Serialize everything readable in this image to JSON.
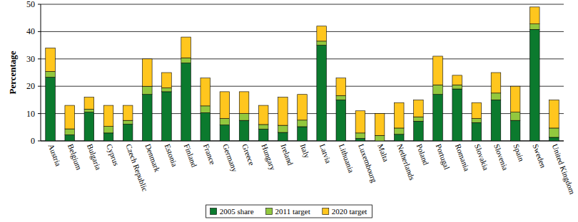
{
  "chart_data": {
    "type": "bar",
    "stacked": true,
    "y_label": "Percentage",
    "categories": [
      "Austria",
      "Belgium",
      "Bulgaria",
      "Cyprus",
      "Czech Republic",
      "Denmark",
      "Estonia",
      "Finland",
      "France",
      "Germany",
      "Greece",
      "Hungary",
      "Ireland",
      "Italy",
      "Latvia",
      "Lithuania",
      "Luxembourg",
      "Malta",
      "Netherlands",
      "Poland",
      "Portugal",
      "Romania",
      "Slovakia",
      "Slovenia",
      "Spain",
      "Sweden",
      "United Kingdom"
    ],
    "series": [
      {
        "name": "2005 share",
        "color": "#0b7a2e",
        "values": [
          23.3,
          2.2,
          10.5,
          2.9,
          6.1,
          17,
          18,
          28.5,
          10.3,
          5.8,
          7.5,
          4.3,
          3.1,
          5.2,
          35,
          15,
          0.9,
          0,
          2.4,
          7.2,
          17,
          19,
          6.7,
          15,
          7.5,
          40.8,
          1.3
        ]
      },
      {
        "name": "2011 target",
        "color": "#92c83e",
        "values": [
          2.1,
          2.2,
          1.1,
          2.4,
          1.4,
          3,
          1.4,
          1.9,
          2.5,
          2.4,
          2.5,
          1.7,
          2.6,
          2.4,
          1.5,
          1.6,
          2.0,
          2.0,
          2.3,
          1.6,
          3.5,
          1.5,
          1.5,
          2.5,
          3.0,
          2.0,
          3.4
        ]
      },
      {
        "name": "2020 target",
        "color": "#ffc61e",
        "values": [
          8.6,
          8.6,
          4.4,
          7.7,
          5.5,
          10,
          5.6,
          7.6,
          10.2,
          9.8,
          8,
          7.0,
          10.3,
          9.4,
          5.5,
          6.4,
          8.1,
          8.0,
          9.3,
          6.2,
          10.5,
          3.5,
          5.8,
          7.5,
          9.5,
          6.2,
          10.3
        ]
      }
    ],
    "ylim": [
      0,
      50
    ],
    "yticks": [
      0,
      10,
      20,
      30,
      40,
      50
    ],
    "grid": true,
    "legend": "bottom"
  }
}
